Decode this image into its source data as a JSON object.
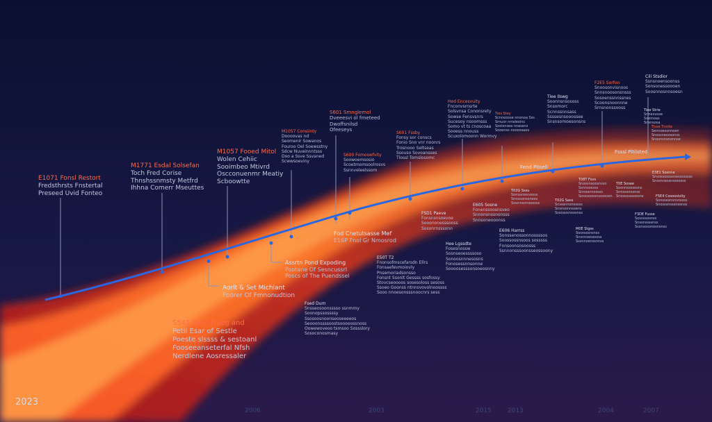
{
  "year_label": "2023",
  "axis_ticks": [
    "2006",
    "2003",
    "2015",
    "2013",
    "2004",
    "2007"
  ],
  "band_colors": [
    "#e02a14",
    "#ff7a2a",
    "#ffa03c",
    "#2a6ae8"
  ],
  "milestones": [
    {
      "heading": "E1071 Fonsl Restort",
      "lines": [
        "Fredsthrsts Fnstertal",
        "Preseed Uvid Fonteo"
      ]
    },
    {
      "heading": "M1771 Esdal Solsefan",
      "lines": [
        "Toch Fred Corise",
        "Thnshssnmsty Metfrd",
        "Ihhna Comerr Mseuttes"
      ]
    },
    {
      "heading": "M1057 Fooed Mitol",
      "lines": [
        "Wolen Cehiic",
        "Sooimbeo Mtivrd",
        "Oscconuenmr Meatiy",
        "Scboowtte"
      ]
    },
    {
      "heading": "M1057 Consiinty",
      "lines": [
        "Doooovas nd",
        "Seomenir Sowanos",
        "Fouroo Oel Soewsstny",
        "Sdcw Nuveinnntsss",
        "Doo a Ssve Ssvaned",
        "Scwwsoeviny"
      ]
    },
    {
      "heading": "S601 Smnglemol",
      "lines": [
        "Dveeesvi ol frneteed",
        "Dwoffsnilsd",
        "Ofeeseys"
      ]
    },
    {
      "heading": "S600 Fomoswfvity",
      "lines": [
        "Soowoemsosio",
        "Scoetmomsoolrosvs",
        "Ssnnveleelssom"
      ]
    },
    {
      "heading": "S601 Fssby",
      "lines": [
        "Fonsy sor conscs",
        "Fonio Sno vnr noonrs",
        "Trosnooo Seltseas",
        "Ssouso Sovoansses",
        "Tlossl Tomslosomc"
      ]
    },
    {
      "heading": "Hed Encesvuity",
      "lines": [
        "Fnconvsrnsrte",
        "Solsvnsa Cononsrety",
        "Sowse Fensvsnrs",
        "Sucesoy nsoomsss",
        "Somo vt ts cnoscoaa",
        "Sooess nnouss",
        "Scuxolomoonn Wormvy"
      ]
    },
    {
      "heading": "Ties Stey",
      "lines": [
        "Scnnoosse nnonoa Sss",
        "Srnuor nrraleoinc",
        "Sooisnsea nnassns",
        "Sooenss nooooaass"
      ]
    },
    {
      "heading": "Tiee Ilswg",
      "lines": [
        "Soonnsnsososs",
        "Snsomorc",
        "Scnnssnnsass",
        "Ssssesnsooossee",
        "Snsnsomoesonsns"
      ]
    },
    {
      "heading": "F2E5 Sorfon",
      "lines": [
        "Snoosonvisnoos",
        "Snnsnoosonsnsss",
        "Sosoenssnnssnes",
        "Scoonsnoonnne",
        "Srnsnonssooss"
      ]
    },
    {
      "heading": "Cili Stsdior",
      "lines": [
        "Ssnsnoensoonss",
        "Sonsonessoooen",
        "Soosnnosnnsoesn"
      ]
    },
    {
      "heading": "Tiee Strie",
      "lines": [
        "Snnesvsoe",
        "Sooinoas",
        "Snsnsosa"
      ]
    },
    {
      "heading": "Tisse Tninte",
      "lines": [
        "Sennoessnnoen",
        "Snossnesosonss",
        "Snosnsnsnonnse"
      ]
    }
  ],
  "lower_notes": [
    {
      "heading": "Aorlt & Set Michiant",
      "lines": [
        "Foorer Of Fmnonudtion"
      ]
    },
    {
      "heading": "Assrtn Pond Expoding",
      "lines": [
        "Pootane Of Sesncussrl",
        "Poscs of The Puendssel"
      ]
    },
    {
      "heading": "Fod Cnetutsasse Mef",
      "lines": [
        "E16P Fnol Gr Nmosrod"
      ]
    },
    {
      "heading": "E50T T2",
      "lines": [
        "Fnonsofmscefarsdn Ellrs",
        "Fonsaefevmoiovly",
        "Pnsemoriadsonsso",
        "Fonsnt Ssonlt Gessss sosfossy",
        "Stovcseoooos sosesoloss sesoss",
        "Ssoeo Goonss ntnnsvovolnoossss",
        "Sooo nnoesonsssnoocnrs sess"
      ]
    },
    {
      "heading": "Fsed Durn",
      "lines": [
        "Snsseosoonsssso ssnmmy",
        "Soonopssossssy",
        "Ssosoosnoonseoseeeeos",
        "Seooonssssoostsooooossnoss",
        "Oowewoveoo tsmsoo Sossslory",
        "Sosoconosmasy"
      ]
    },
    {
      "heading": "S541 Bete Frseg and",
      "lines": [
        "Petil Esar of Sestle",
        "Poeste slssss & sestoanl",
        "Fooseeanseterfal Nfsh",
        "Nerdlene Aosressaler"
      ]
    },
    {
      "heading": "FSD1 Paeve",
      "lines": [
        "Fonsnsnsoevoe",
        "Sooononesssooss",
        "Sosonrnsssonn"
      ]
    },
    {
      "heading": "E605 Sosne",
      "lines": [
        "Fonenssoosnsveo",
        "Snnonsnssnonsss",
        "Snnsoneooonss"
      ]
    },
    {
      "heading": "Hee Lgssdte",
      "lines": [
        "Fosesnossw",
        "Sosnseoessssoso",
        "Sonoosnnnesosns",
        "Fonosessnnsonne",
        "Soooosesssonsoeosnny"
      ]
    },
    {
      "heading": "E606 Harrss",
      "lines": [
        "Sonssenossonnossssos",
        "Soossossnsoos sosssss",
        "Fnnsoonsnsoosss",
        "Ssnnonsssoonsseossoony"
      ]
    },
    {
      "heading": "T02G Sssu",
      "lines": [
        "Sonsonesnooss",
        "Snnssonsoness",
        "Soonnsnnsoosss"
      ]
    },
    {
      "heading": "T02G Sass",
      "lines": [
        "Snsssnnonsssss",
        "Snsnsonnsoens",
        "Sssososnoosnss"
      ]
    },
    {
      "heading": "T08T Fsvs",
      "lines": [
        "Snossnsoosnssn",
        "Ssnnsossss",
        "Snnsonnossss",
        "Sosssoossnsooossn"
      ]
    },
    {
      "heading": "M0E Stgss",
      "lines": [
        "Sosnsssnsnss",
        "Snsnnsessooss",
        "Sssnnosnssnnss"
      ]
    },
    {
      "heading": "T0E Sosee",
      "lines": [
        "Sosnnsossosns",
        "Snnsssnosnss",
        "Snossssssoosns"
      ]
    },
    {
      "heading": "E3E1 Sosnne",
      "lines": [
        "Snsossossssnessssssss",
        "Snssnnessnssoosss"
      ]
    },
    {
      "heading": "F5E4 Cosoosivity",
      "lines": [
        "Sonssesnsnsnssss",
        "Snosssnsssnosnss"
      ]
    },
    {
      "heading": "F3DE Fusse",
      "lines": [
        "Sosnssosnss",
        "Snssnssssnss",
        "Sssnsosonosnsnss"
      ]
    },
    {
      "heading": "Fend Pitsell",
      "lines": []
    },
    {
      "heading": "Fsssl Pltilsted",
      "lines": []
    }
  ]
}
